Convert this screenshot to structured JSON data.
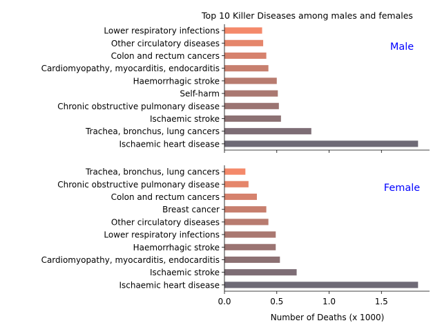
{
  "title": "Top 10 Killer Diseases among males and females",
  "xlabel": "Number of Deaths (x 1000)",
  "chart_data": [
    {
      "type": "bar",
      "orientation": "horizontal",
      "panel_label": "Male",
      "categories": [
        "Ischaemic heart disease",
        "Trachea, bronchus, lung cancers",
        "Ischaemic stroke",
        "Chronic obstructive pulmonary disease",
        "Self-harm",
        "Haemorrhagic stroke",
        "Cardiomyopathy, myocarditis, endocarditis",
        "Colon and rectum cancers",
        "Other circulatory diseases",
        "Lower respiratory infections"
      ],
      "values": [
        1.85,
        0.83,
        0.54,
        0.52,
        0.51,
        0.5,
        0.42,
        0.4,
        0.37,
        0.36
      ],
      "xlim": [
        0,
        1.96
      ],
      "xticks": [
        0.0,
        0.5,
        1.0,
        1.5
      ],
      "xtick_labels_visible": false
    },
    {
      "type": "bar",
      "orientation": "horizontal",
      "panel_label": "Female",
      "categories": [
        "Ischaemic heart disease",
        "Ischaemic stroke",
        "Cardiomyopathy, myocarditis, endocarditis",
        "Haemorrhagic stroke",
        "Lower respiratory infections",
        "Other circulatory diseases",
        "Breast cancer",
        "Colon and rectum cancers",
        "Chronic obstructive pulmonary disease",
        "Trachea, bronchus, lung cancers"
      ],
      "values": [
        1.85,
        0.69,
        0.53,
        0.49,
        0.49,
        0.42,
        0.4,
        0.31,
        0.23,
        0.2
      ],
      "xlim": [
        0,
        1.96
      ],
      "xticks": [
        0.0,
        0.5,
        1.0,
        1.5
      ],
      "xtick_labels": [
        "0.0",
        "0.5",
        "1.0",
        "1.5"
      ]
    }
  ],
  "colors": {
    "bar_bottom": "#6e6a76",
    "bar_top": "#f4896a",
    "panel_label": "#0000ff",
    "axis": "#000000"
  }
}
